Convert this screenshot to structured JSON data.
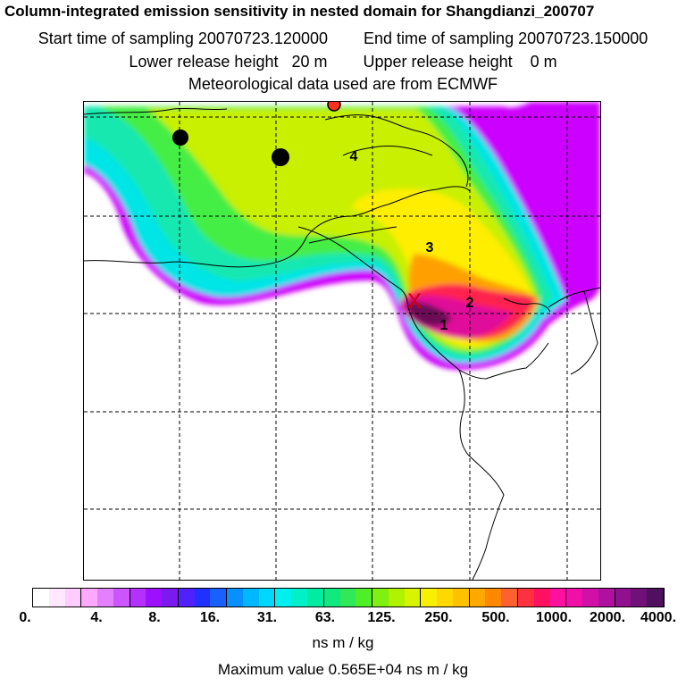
{
  "header": {
    "title": "Column-integrated emission sensitivity in nested domain for Shangdianzi_200707",
    "start_label": "Start time of sampling 20070723.120000",
    "end_label": "End time of sampling 20070723.150000",
    "lower_label": "Lower release height   20 m",
    "upper_label": "Upper release height    0 m",
    "met_label": "Meteorological data used are from ECMWF"
  },
  "map": {
    "numbers": [
      "1",
      "2",
      "3",
      "4"
    ],
    "release_marker": "X",
    "colors": {
      "purple": "#cc00ff",
      "cyan": "#00e5e5",
      "teal": "#18e8b0",
      "green": "#44ee44",
      "yellowgreen": "#c8f000",
      "yellow": "#ffee00",
      "orange": "#ffa000",
      "red": "#ff2050",
      "magenta": "#e0109a",
      "darkpurple": "#6a0a56"
    }
  },
  "legend": {
    "tick_labels": [
      "0.",
      "4.",
      "8.",
      "16.",
      "31.",
      "63.",
      "125.",
      "250.",
      "500.",
      "1000.",
      "2000.",
      "4000."
    ],
    "colors": [
      "#ffffff",
      "#ffe8ff",
      "#ffccff",
      "#ffa8ff",
      "#e480ff",
      "#cc55ff",
      "#b430ff",
      "#9c10ff",
      "#7c18f0",
      "#5020ff",
      "#2030ff",
      "#1860ff",
      "#0890ff",
      "#00b8ff",
      "#00d8ff",
      "#00f0f0",
      "#00f0c8",
      "#00eca0",
      "#10e880",
      "#30e858",
      "#50ee28",
      "#80f010",
      "#b0f200",
      "#d8f400",
      "#f8f000",
      "#ffd800",
      "#ffc000",
      "#ffa800",
      "#ff8800",
      "#ff6030",
      "#ff3040",
      "#ff1060",
      "#ff10a0",
      "#f010a8",
      "#d010a8",
      "#b010a0",
      "#901090",
      "#701078",
      "#501060"
    ],
    "unit": "ns m / kg",
    "max_value_label": "Maximum value  0.565E+04 ns m / kg"
  }
}
